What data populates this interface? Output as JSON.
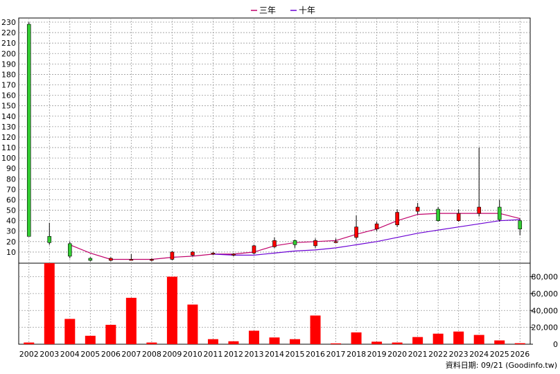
{
  "legend": {
    "position": "top-center",
    "items": [
      {
        "label": "三年",
        "color": "#c0006a"
      },
      {
        "label": "十年",
        "color": "#6a00d4"
      }
    ]
  },
  "footer": {
    "text": "資料日期: 09/21  (Goodinfo.tw)"
  },
  "colors": {
    "up": "#ff0000",
    "down": "#33cc33",
    "wick": "#000000",
    "volume": "#ff0000",
    "grid": "#999999"
  },
  "chart_data": [
    {
      "type": "candlestick",
      "title": "",
      "ylim": [
        0,
        230
      ],
      "yticks": [
        10,
        20,
        30,
        40,
        50,
        60,
        70,
        80,
        90,
        100,
        110,
        120,
        130,
        140,
        150,
        160,
        170,
        180,
        190,
        200,
        210,
        220,
        230
      ],
      "grid": true,
      "categories": [
        "2002",
        "2003",
        "2004",
        "2005",
        "2006",
        "2007",
        "2008",
        "2009",
        "2010",
        "2011",
        "2012",
        "2013",
        "2014",
        "2015",
        "2016",
        "2017",
        "2018",
        "2019",
        "2020",
        "2021",
        "2022",
        "2023",
        "2024",
        "2025",
        "2026"
      ],
      "candles": [
        {
          "open": 228,
          "close": 25,
          "high": 230,
          "low": 25
        },
        {
          "open": 25,
          "close": 19,
          "high": 38,
          "low": 17
        },
        {
          "open": 18,
          "close": 6,
          "high": 20,
          "low": 4
        },
        {
          "open": 4,
          "close": 2,
          "high": 5,
          "low": 1
        },
        {
          "open": 2,
          "close": 4,
          "high": 5,
          "low": 1
        },
        {
          "open": 3,
          "close": 3,
          "high": 8,
          "low": 2
        },
        {
          "open": 2,
          "close": 3,
          "high": 4,
          "low": 1
        },
        {
          "open": 3,
          "close": 10,
          "high": 11,
          "low": 2
        },
        {
          "open": 7,
          "close": 10,
          "high": 11,
          "low": 6
        },
        {
          "open": 8,
          "close": 9,
          "high": 10,
          "low": 7
        },
        {
          "open": 7,
          "close": 8,
          "high": 9,
          "low": 6
        },
        {
          "open": 9,
          "close": 16,
          "high": 17,
          "low": 8
        },
        {
          "open": 15,
          "close": 21,
          "high": 24,
          "low": 14
        },
        {
          "open": 21,
          "close": 17,
          "high": 22,
          "low": 14
        },
        {
          "open": 16,
          "close": 21,
          "high": 23,
          "low": 14
        },
        {
          "open": 20,
          "close": 20,
          "high": 23,
          "low": 19
        },
        {
          "open": 24,
          "close": 34,
          "high": 45,
          "low": 22
        },
        {
          "open": 32,
          "close": 37,
          "high": 39,
          "low": 30
        },
        {
          "open": 36,
          "close": 48,
          "high": 51,
          "low": 34
        },
        {
          "open": 49,
          "close": 53,
          "high": 57,
          "low": 46
        },
        {
          "open": 51,
          "close": 40,
          "high": 53,
          "low": 39
        },
        {
          "open": 40,
          "close": 47,
          "high": 51,
          "low": 39
        },
        {
          "open": 47,
          "close": 53,
          "high": 110,
          "low": 44
        },
        {
          "open": 53,
          "close": 41,
          "high": 60,
          "low": 39
        },
        {
          "open": 40,
          "close": 32,
          "high": 42,
          "low": 26
        }
      ],
      "series": [
        {
          "name": "三年",
          "color": "#c0006a",
          "values": [
            null,
            null,
            17,
            9,
            3,
            3,
            3,
            5,
            6,
            8,
            8,
            10,
            16,
            19,
            20,
            21,
            27,
            32,
            40,
            46,
            47,
            47,
            47,
            47,
            42
          ]
        },
        {
          "name": "十年",
          "color": "#6a00d4",
          "values": [
            null,
            null,
            null,
            null,
            null,
            null,
            null,
            null,
            null,
            8,
            7,
            7,
            9,
            11,
            12,
            14,
            17,
            20,
            24,
            28,
            31,
            34,
            37,
            40,
            41
          ]
        }
      ]
    },
    {
      "type": "bar",
      "title": "",
      "ylim": [
        0,
        96000
      ],
      "yticks": [
        0,
        20000,
        40000,
        60000,
        80000
      ],
      "ytick_labels": [
        "0",
        "20,000",
        "40,000",
        "60,000",
        "80,000"
      ],
      "grid": true,
      "categories": [
        "2002",
        "2003",
        "2004",
        "2005",
        "2006",
        "2007",
        "2008",
        "2009",
        "2010",
        "2011",
        "2012",
        "2013",
        "2014",
        "2015",
        "2016",
        "2017",
        "2018",
        "2019",
        "2020",
        "2021",
        "2022",
        "2023",
        "2024",
        "2025",
        "2026"
      ],
      "values": [
        2000,
        96000,
        30000,
        10000,
        23000,
        55000,
        2000,
        80000,
        47000,
        6000,
        3500,
        16000,
        8000,
        6000,
        34000,
        1000,
        14000,
        3000,
        2000,
        8500,
        12500,
        15000,
        11000,
        4500,
        1200
      ]
    }
  ]
}
